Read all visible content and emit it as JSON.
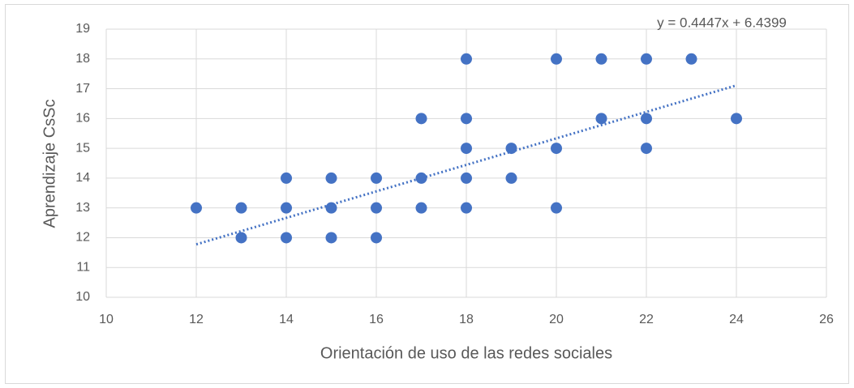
{
  "chart_data": {
    "type": "scatter",
    "x_label": "Orientación de uso de las redes sociales",
    "y_label": "Aprendizaje CsSc",
    "series": [
      {
        "name": "Aprendizaje CsSc",
        "color": "#4472c4",
        "x": [
          12,
          13,
          13,
          14,
          14,
          14,
          15,
          15,
          15,
          16,
          16,
          16,
          17,
          17,
          17,
          18,
          18,
          18,
          18,
          18,
          19,
          19,
          20,
          20,
          20,
          21,
          21,
          22,
          22,
          22,
          23,
          24
        ],
        "values": [
          13,
          13,
          12,
          14,
          13,
          12,
          14,
          13,
          12,
          14,
          13,
          12,
          16,
          14,
          13,
          18,
          16,
          15,
          14,
          13,
          15,
          14,
          18,
          15,
          13,
          18,
          16,
          18,
          16,
          15,
          18,
          16
        ]
      }
    ],
    "trendline": {
      "slope": 0.4447,
      "intercept": 6.4399,
      "label": "y = 0.4447x + 6.4399",
      "color": "#4472c4"
    },
    "xlim": [
      10,
      26
    ],
    "xticks": [
      10,
      12,
      14,
      16,
      18,
      20,
      22,
      24,
      26
    ],
    "ylim": [
      10,
      19
    ],
    "yticks": [
      10,
      11,
      12,
      13,
      14,
      15,
      16,
      17,
      18,
      19
    ],
    "grid": true
  }
}
